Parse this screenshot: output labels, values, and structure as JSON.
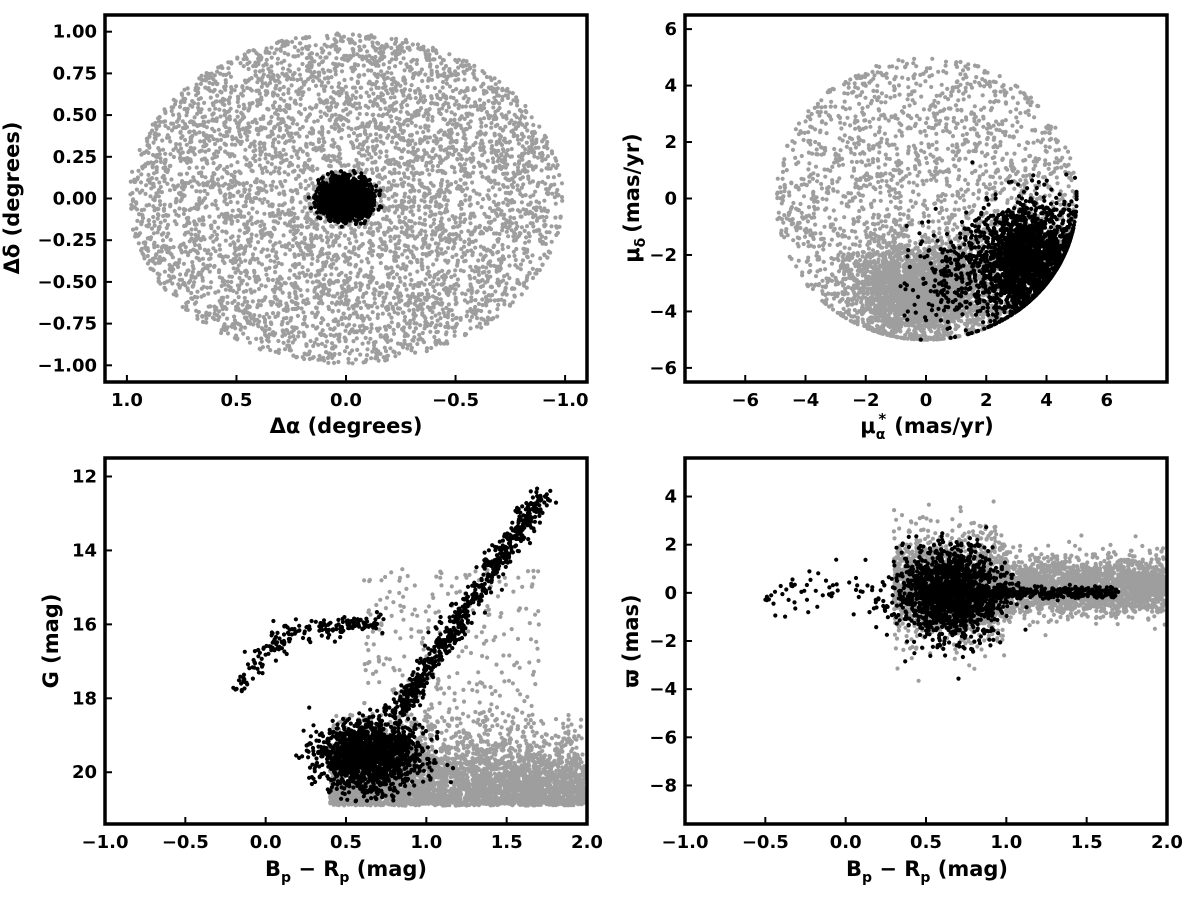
{
  "colors": {
    "field": "#9e9e9e",
    "member": "#000000"
  },
  "chart_data": [
    {
      "type": "scatter",
      "id": "position",
      "xlabel": "Δα (degrees)",
      "ylabel": "Δδ (degrees)",
      "xlim": [
        1.1,
        -1.1
      ],
      "ylim": [
        -1.1,
        1.1
      ],
      "xticks": [
        1.0,
        0.5,
        0.0,
        -0.5,
        -1.0
      ],
      "xtick_labels": [
        "1.0",
        "0.5",
        "0.0",
        "−0.5",
        "−1.0"
      ],
      "yticks": [
        -1.0,
        -0.75,
        -0.5,
        -0.25,
        0.0,
        0.25,
        0.5,
        0.75,
        1.0
      ],
      "ytick_labels": [
        "−1.00",
        "−0.75",
        "−0.50",
        "−0.25",
        "0.00",
        "0.25",
        "0.50",
        "0.75",
        "1.00"
      ],
      "grid": false,
      "series": [
        {
          "role": "field",
          "distribution": "uniform disk",
          "center": [
            0.0,
            0.0
          ],
          "radius": 0.99,
          "count": 5200
        },
        {
          "role": "member",
          "distribution": "gaussian",
          "center": [
            0.0,
            0.0
          ],
          "sigma": [
            0.055,
            0.055
          ],
          "count": 1800
        }
      ]
    },
    {
      "type": "scatter",
      "id": "proper-motion",
      "xlabel_main": "μ",
      "xlabel_sub": "α",
      "xlabel_sup": "*",
      "xlabel_unit": "(mas/yr)",
      "ylabel_main": "μ",
      "ylabel_sub": "δ",
      "ylabel_unit": "(mas/yr)",
      "xlim": [
        -8,
        8
      ],
      "ylim": [
        -6.5,
        6.5
      ],
      "xticks": [
        -6,
        -4,
        -2,
        0,
        2,
        4,
        6
      ],
      "xtick_labels": [
        "−6",
        "−4",
        "−2",
        "0",
        "2",
        "4",
        "6"
      ],
      "yticks": [
        -6,
        -4,
        -2,
        0,
        2,
        4,
        6
      ],
      "ytick_labels": [
        "−6",
        "−4",
        "−2",
        "0",
        "2",
        "4",
        "6"
      ],
      "grid": false,
      "series": [
        {
          "role": "field",
          "distribution": "disk with gaussian core",
          "disk_center": [
            0.0,
            0.0
          ],
          "disk_radius": 5.0,
          "core_center": [
            -0.3,
            -3.3
          ],
          "core_sigma": [
            1.2,
            0.8
          ],
          "count": 4600
        },
        {
          "role": "member",
          "distribution": "gaussian in disk",
          "center": [
            3.4,
            -2.2
          ],
          "sigma": [
            0.9,
            1.0
          ],
          "count": 2200,
          "tail_center": [
            1.2,
            -3.0
          ],
          "tail_count": 250
        }
      ]
    },
    {
      "type": "scatter",
      "id": "cmd",
      "xlabel_main": "B",
      "xlabel_sub1": "p",
      "xlabel_mid": " − R",
      "xlabel_sub2": "p",
      "xlabel_unit": " (mag)",
      "ylabel": "G (mag)",
      "xlim": [
        -1.0,
        2.0
      ],
      "ylim": [
        21.4,
        11.5
      ],
      "xticks": [
        -1.0,
        -0.5,
        0.0,
        0.5,
        1.0,
        1.5,
        2.0
      ],
      "xtick_labels": [
        "−1.0",
        "−0.5",
        "0.0",
        "0.5",
        "1.0",
        "1.5",
        "2.0"
      ],
      "yticks": [
        12,
        14,
        16,
        18,
        20
      ],
      "ytick_labels": [
        "12",
        "14",
        "16",
        "18",
        "20"
      ],
      "grid": false,
      "series": [
        {
          "role": "field",
          "distribution": "band",
          "x_range": [
            0.4,
            2.0
          ],
          "y_range": [
            18.3,
            20.9
          ],
          "count": 3800
        },
        {
          "role": "member",
          "features": [
            {
              "name": "turnoff",
              "center": [
                0.65,
                19.6
              ],
              "sigma": [
                0.16,
                0.45
              ],
              "count": 1500
            },
            {
              "name": "red giant branch",
              "from": [
                0.8,
                18.5
              ],
              "to": [
                1.72,
                12.5
              ],
              "count": 650
            },
            {
              "name": "horizontal branch",
              "from": [
                0.1,
                16.3
              ],
              "to": [
                0.7,
                15.9
              ],
              "count": 130
            },
            {
              "name": "blue horizontal branch",
              "from": [
                -0.2,
                17.8
              ],
              "to": [
                0.1,
                16.3
              ],
              "count": 70
            }
          ]
        }
      ]
    },
    {
      "type": "scatter",
      "id": "parallax",
      "xlabel_main": "B",
      "xlabel_sub1": "p",
      "xlabel_mid": " − R",
      "xlabel_sub2": "p",
      "xlabel_unit": " (mag)",
      "ylabel": "ϖ (mas)",
      "xlim": [
        -1.0,
        2.0
      ],
      "ylim": [
        -9.6,
        5.6
      ],
      "xticks": [
        -1.0,
        -0.5,
        0.0,
        0.5,
        1.0,
        1.5,
        2.0
      ],
      "xtick_labels": [
        "−1.0",
        "−0.5",
        "0.0",
        "0.5",
        "1.0",
        "1.5",
        "2.0"
      ],
      "yticks": [
        -8,
        -6,
        -4,
        -2,
        0,
        2,
        4
      ],
      "ytick_labels": [
        "−8",
        "−6",
        "−4",
        "−2",
        "0",
        "2",
        "4"
      ],
      "grid": false,
      "series": [
        {
          "role": "field",
          "distribution": "band",
          "x_range": [
            0.3,
            2.0
          ],
          "y_center": 0.3,
          "sigma": 0.7,
          "count": 3800
        },
        {
          "role": "member",
          "distribution": "blob plus tail",
          "center": [
            0.65,
            0.0
          ],
          "sigma": [
            0.15,
            0.9
          ],
          "tail_from": [
            0.8,
            0.0
          ],
          "tail_to": [
            1.7,
            0.1
          ],
          "count": 2000
        }
      ]
    }
  ]
}
